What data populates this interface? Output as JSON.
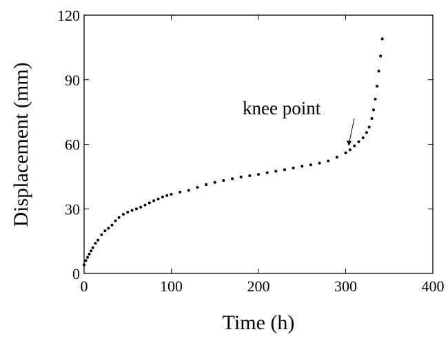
{
  "chart_data": {
    "type": "scatter",
    "xlabel": "Time (h)",
    "ylabel": "Displacement (mm)",
    "annotation": "knee point",
    "xlim": [
      0,
      400
    ],
    "xticks": [
      0,
      100,
      200,
      300,
      400
    ],
    "ylim": [
      0,
      120
    ],
    "yticks": [
      0,
      30,
      60,
      90,
      120
    ],
    "series": [
      {
        "color": "#000000",
        "x": [
          0,
          2,
          4,
          6,
          8,
          10,
          13,
          16,
          20,
          24,
          28,
          32,
          36,
          40,
          45,
          50,
          55,
          60,
          65,
          70,
          75,
          80,
          85,
          90,
          95,
          100,
          110,
          120,
          130,
          140,
          150,
          160,
          170,
          180,
          190,
          200,
          210,
          220,
          230,
          240,
          250,
          260,
          270,
          280,
          290,
          300,
          305,
          310,
          315,
          320,
          324,
          327,
          330,
          332,
          334,
          336,
          338,
          340,
          342
        ],
        "values": [
          4,
          6,
          7.5,
          9,
          10.5,
          12,
          14,
          15.5,
          18,
          19.8,
          21,
          22.5,
          24.5,
          26,
          27.5,
          28.5,
          29.3,
          30,
          30.8,
          31.8,
          32.8,
          33.8,
          34.6,
          35.5,
          36.2,
          36.8,
          37.8,
          38.6,
          40,
          41.3,
          42.3,
          43.2,
          44,
          44.8,
          45.4,
          46,
          46.8,
          47.5,
          48.2,
          49,
          49.8,
          50.5,
          51.3,
          52.3,
          54,
          56,
          57.5,
          59.3,
          61.2,
          63,
          65.5,
          68,
          72,
          76,
          81,
          87,
          94,
          101,
          109
        ]
      }
    ]
  }
}
